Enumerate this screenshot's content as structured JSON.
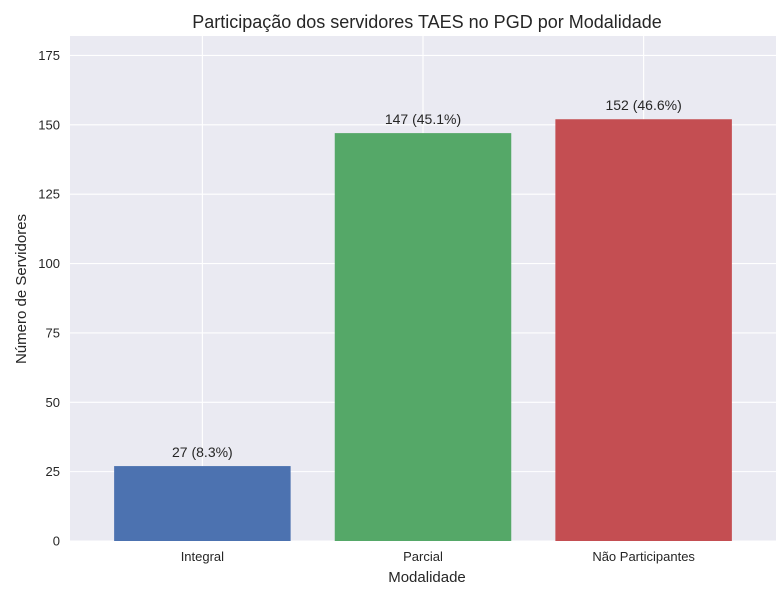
{
  "chart_data": {
    "type": "bar",
    "title": "Participação dos servidores TAES no PGD por Modalidade",
    "xlabel": "Modalidade",
    "ylabel": "Número de Servidores",
    "categories": [
      "Integral",
      "Parcial",
      "Não Participantes"
    ],
    "values": [
      27,
      147,
      152
    ],
    "data_labels": [
      "27 (8.3%)",
      "147 (45.1%)",
      "152 (46.6%)"
    ],
    "colors": [
      "#4c72b0",
      "#55a868",
      "#c44e52"
    ],
    "ylim": [
      0,
      182
    ],
    "yticks": [
      0,
      25,
      50,
      75,
      100,
      125,
      150,
      175
    ],
    "grid": true,
    "background": "#eaeaf2"
  }
}
